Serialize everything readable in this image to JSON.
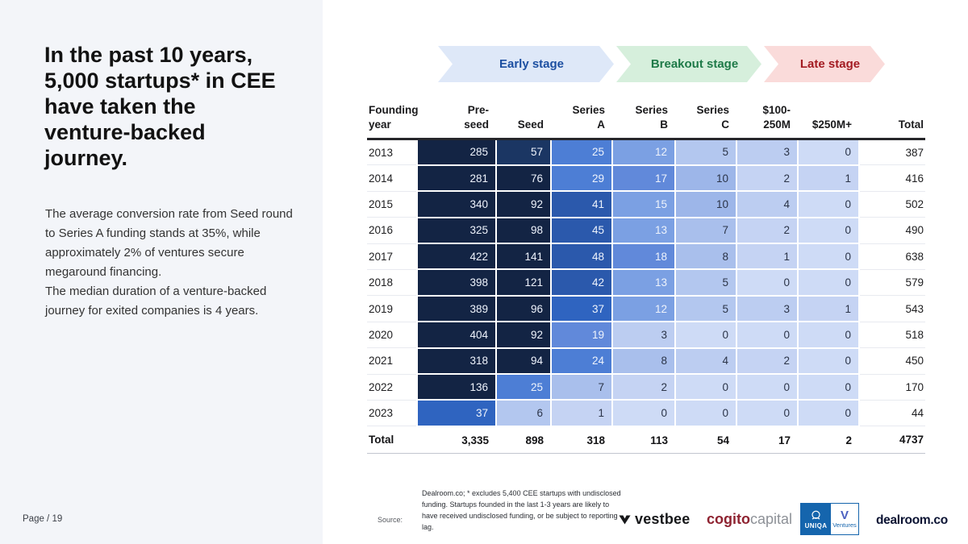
{
  "slide": {
    "title": "In the past 10 years,\n5,000 startups* in CEE\nhave taken the\nventure-backed\njourney.",
    "body_1": "The average conversion rate from Seed round to Series A funding stands at 35%, while approximately 2% of ventures secure megaround financing.",
    "body_2": "The median duration of a venture-backed journey for exited companies is 4 years.",
    "page_label": "Page / 19"
  },
  "stages": [
    {
      "label": "Early stage",
      "bg_color": "#dee8f8",
      "text_color": "#1c4fa1"
    },
    {
      "label": "Breakout stage",
      "bg_color": "#d6efdc",
      "text_color": "#1e7a48"
    },
    {
      "label": "Late stage",
      "bg_color": "#fadbda",
      "text_color": "#a31b22"
    }
  ],
  "table": {
    "headers": [
      "Founding\nyear",
      "Pre-\nseed",
      "Seed",
      "Series\nA",
      "Series\nB",
      "Series\nC",
      "$100-\n250M",
      "$250M+",
      "Total"
    ],
    "rows": [
      {
        "year": "2013",
        "values": [
          285,
          57,
          25,
          12,
          5,
          3,
          0
        ],
        "total": "387"
      },
      {
        "year": "2014",
        "values": [
          281,
          76,
          29,
          17,
          10,
          2,
          1
        ],
        "total": "416"
      },
      {
        "year": "2015",
        "values": [
          340,
          92,
          41,
          15,
          10,
          4,
          0
        ],
        "total": "502"
      },
      {
        "year": "2016",
        "values": [
          325,
          98,
          45,
          13,
          7,
          2,
          0
        ],
        "total": "490"
      },
      {
        "year": "2017",
        "values": [
          422,
          141,
          48,
          18,
          8,
          1,
          0
        ],
        "total": "638"
      },
      {
        "year": "2018",
        "values": [
          398,
          121,
          42,
          13,
          5,
          0,
          0
        ],
        "total": "579"
      },
      {
        "year": "2019",
        "values": [
          389,
          96,
          37,
          12,
          5,
          3,
          1
        ],
        "total": "543"
      },
      {
        "year": "2020",
        "values": [
          404,
          92,
          19,
          3,
          0,
          0,
          0
        ],
        "total": "518"
      },
      {
        "year": "2021",
        "values": [
          318,
          94,
          24,
          8,
          4,
          2,
          0
        ],
        "total": "450"
      },
      {
        "year": "2022",
        "values": [
          136,
          25,
          7,
          2,
          0,
          0,
          0
        ],
        "total": "170"
      },
      {
        "year": "2023",
        "values": [
          37,
          6,
          1,
          0,
          0,
          0,
          0
        ],
        "total": "44"
      }
    ],
    "total_row": {
      "label": "Total",
      "values": [
        "3,335",
        "898",
        "318",
        "113",
        "54",
        "17",
        "2"
      ],
      "total": "4737"
    }
  },
  "heatmap_scale": [
    {
      "min": 76,
      "color": "#132444"
    },
    {
      "min": 50,
      "color": "#1b3663"
    },
    {
      "min": 40,
      "color": "#2b59ac"
    },
    {
      "min": 30,
      "color": "#2f64c0"
    },
    {
      "min": 22,
      "color": "#4d7ed5"
    },
    {
      "min": 16,
      "color": "#6189da"
    },
    {
      "min": 12,
      "color": "#7ba0e3"
    },
    {
      "min": 9,
      "color": "#9db6e9"
    },
    {
      "min": 7,
      "color": "#a9bfec"
    },
    {
      "min": 5,
      "color": "#b3c7ef"
    },
    {
      "min": 3,
      "color": "#bccdf1"
    },
    {
      "min": 1,
      "color": "#c5d3f3"
    },
    {
      "min": 0,
      "color": "#cedbf6"
    }
  ],
  "footer": {
    "source_label": "Source:",
    "source_note": "Dealroom.co; * excludes 5,400 CEE startups with undisclosed funding. Startups founded in the last 1-3 years are likely to have received undisclosed funding, or be subject to reporting lag.",
    "logos": {
      "vestbee": "vestbee",
      "cogito_bold": "cogito",
      "cogito_light": "capital",
      "uniqa": "UNIQA",
      "uniqa_v": "V",
      "uniqa_ventures": "Ventures",
      "dealroom": "dealroom.co"
    },
    "brand_colors": {
      "cogito_red": "#8e2230",
      "uniqa_blue": "#1565ad",
      "dealroom_navy": "#0b1333"
    }
  },
  "chart_data": {
    "type": "heatmap",
    "x_labels": [
      "Pre-seed",
      "Seed",
      "Series A",
      "Series B",
      "Series C",
      "$100-250M",
      "$250M+"
    ],
    "y_labels": [
      "2013",
      "2014",
      "2015",
      "2016",
      "2017",
      "2018",
      "2019",
      "2020",
      "2021",
      "2022",
      "2023"
    ],
    "values": [
      [
        285,
        57,
        25,
        12,
        5,
        3,
        0
      ],
      [
        281,
        76,
        29,
        17,
        10,
        2,
        1
      ],
      [
        340,
        92,
        41,
        15,
        10,
        4,
        0
      ],
      [
        325,
        98,
        45,
        13,
        7,
        2,
        0
      ],
      [
        422,
        141,
        48,
        18,
        8,
        1,
        0
      ],
      [
        398,
        121,
        42,
        13,
        5,
        0,
        0
      ],
      [
        389,
        96,
        37,
        12,
        5,
        3,
        1
      ],
      [
        404,
        92,
        19,
        3,
        0,
        0,
        0
      ],
      [
        318,
        94,
        24,
        8,
        4,
        2,
        0
      ],
      [
        136,
        25,
        7,
        2,
        0,
        0,
        0
      ],
      [
        37,
        6,
        1,
        0,
        0,
        0,
        0
      ]
    ],
    "row_totals": [
      387,
      416,
      502,
      490,
      638,
      579,
      543,
      518,
      450,
      170,
      44
    ],
    "column_totals": [
      3335,
      898,
      318,
      113,
      54,
      17,
      2
    ],
    "grand_total": 4737,
    "stage_groups": [
      "Early stage",
      "Breakout stage",
      "Late stage"
    ],
    "legend_position": "top"
  }
}
